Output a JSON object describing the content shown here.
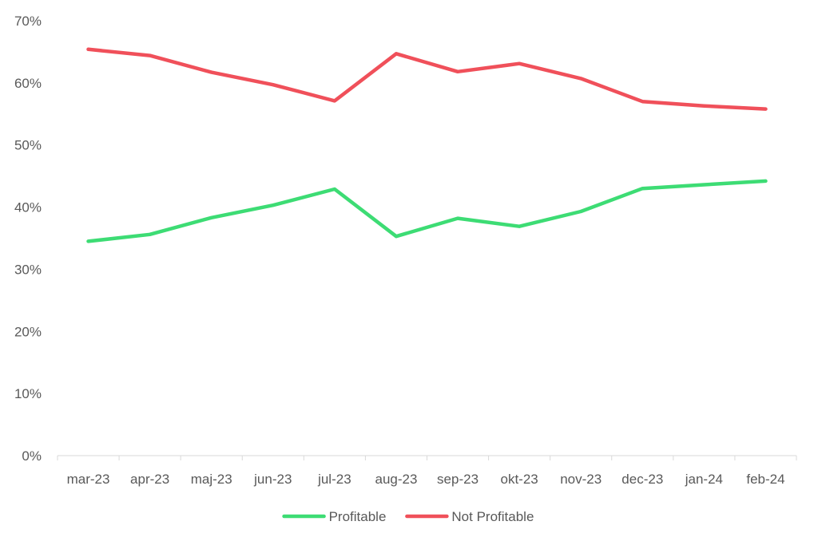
{
  "chart_data": {
    "type": "line",
    "title": "",
    "xlabel": "",
    "ylabel": "",
    "categories": [
      "mar-23",
      "apr-23",
      "maj-23",
      "jun-23",
      "jul-23",
      "aug-23",
      "sep-23",
      "okt-23",
      "nov-23",
      "dec-23",
      "jan-24",
      "feb-24"
    ],
    "y_ticks": [
      "0%",
      "10%",
      "20%",
      "30%",
      "40%",
      "50%",
      "60%",
      "70%"
    ],
    "ylim": [
      0,
      70
    ],
    "grid": false,
    "legend_position": "bottom",
    "series": [
      {
        "name": "Profitable",
        "color": "#3ddc74",
        "values": [
          34.5,
          35.6,
          38.3,
          40.3,
          42.9,
          35.3,
          38.2,
          36.9,
          39.3,
          43.0,
          43.6,
          44.2
        ]
      },
      {
        "name": "Not Profitable",
        "color": "#f0505a",
        "values": [
          65.4,
          64.4,
          61.7,
          59.7,
          57.1,
          64.7,
          61.8,
          63.1,
          60.7,
          57.0,
          56.3,
          55.8
        ]
      }
    ]
  }
}
